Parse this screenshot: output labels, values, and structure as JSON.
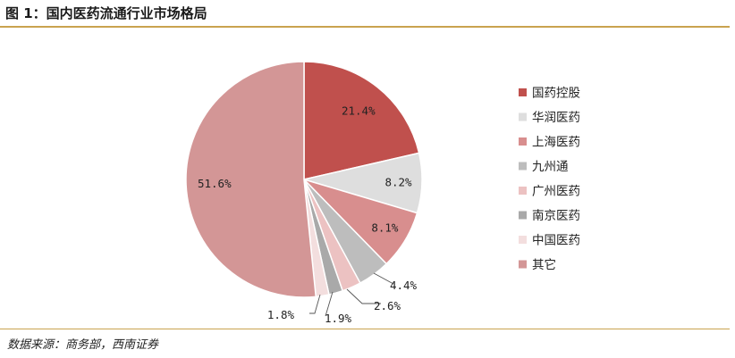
{
  "figure": {
    "title": "图 1：国内医药流通行业市场格局",
    "source": "数据来源：商务部，西南证券"
  },
  "chart_data": {
    "type": "pie",
    "categories": [
      "国药控股",
      "华润医药",
      "上海医药",
      "九州通",
      "广州医药",
      "南京医药",
      "中国医药",
      "其它"
    ],
    "values": [
      21.4,
      8.2,
      8.1,
      4.4,
      2.6,
      1.9,
      1.8,
      51.6
    ],
    "value_labels": [
      "21.4%",
      "8.2%",
      "8.1%",
      "4.4%",
      "2.6%",
      "1.9%",
      "1.8%",
      "51.6%"
    ],
    "colors": [
      "#c0504d",
      "#dedede",
      "#d88e8e",
      "#bdbdbd",
      "#ecc2c2",
      "#a9a9a9",
      "#f3dede",
      "#d39696"
    ],
    "legend_position": "right"
  }
}
